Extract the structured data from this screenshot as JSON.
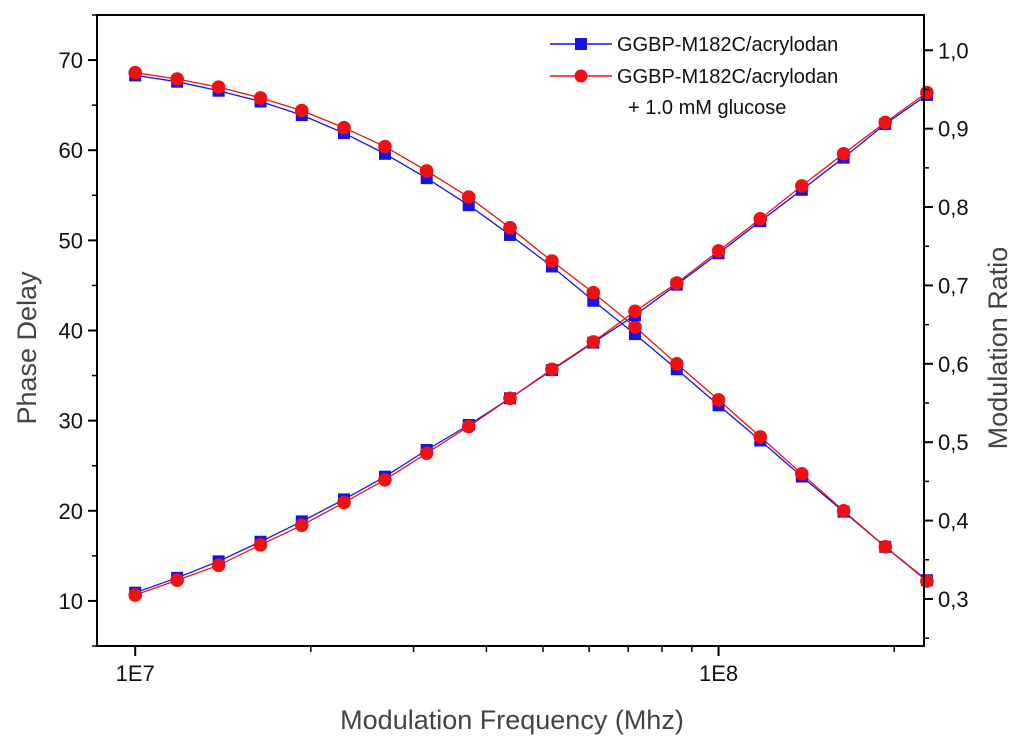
{
  "chart_data": {
    "type": "line",
    "title": "",
    "xlabel": "Modulation Frequency (Mhz)",
    "ylabel": "Phase Delay",
    "y2label": "Modulation Ratio",
    "xscale": "log",
    "xlim": [
      8600000,
      225000000
    ],
    "ylim": [
      5,
      75
    ],
    "y2lim": [
      0.24,
      1.045
    ],
    "x_ticks": [
      {
        "value": 10000000,
        "label": "1E7"
      },
      {
        "value": 100000000,
        "label": "1E8"
      }
    ],
    "y_ticks": [
      {
        "value": 10,
        "label": "10"
      },
      {
        "value": 20,
        "label": "20"
      },
      {
        "value": 30,
        "label": "30"
      },
      {
        "value": 40,
        "label": "40"
      },
      {
        "value": 50,
        "label": "50"
      },
      {
        "value": 60,
        "label": "60"
      },
      {
        "value": 70,
        "label": "70"
      }
    ],
    "y2_ticks": [
      {
        "value": 0.3,
        "label": "0,3"
      },
      {
        "value": 0.4,
        "label": "0,4"
      },
      {
        "value": 0.5,
        "label": "0,5"
      },
      {
        "value": 0.6,
        "label": "0,6"
      },
      {
        "value": 0.7,
        "label": "0,7"
      },
      {
        "value": 0.8,
        "label": "0,8"
      },
      {
        "value": 0.9,
        "label": "0,9"
      },
      {
        "value": 1.0,
        "label": "1,0"
      }
    ],
    "x": [
      10000000,
      11800000,
      13900000,
      16400000,
      19300000,
      22800000,
      26800000,
      31600000,
      37300000,
      43900000,
      51800000,
      61000000,
      71900000,
      84800000,
      100000000,
      117900000,
      138900000,
      163800000,
      193100000,
      227600000
    ],
    "series": [
      {
        "name": "GGBP-M182C/acrylodan",
        "axis": "left",
        "color": "#1414e6",
        "marker": "square",
        "values": [
          68.3,
          67.6,
          66.6,
          65.4,
          63.9,
          61.9,
          59.6,
          56.9,
          53.9,
          50.6,
          47.1,
          43.3,
          39.6,
          35.7,
          31.7,
          27.8,
          23.8,
          19.9,
          16.0,
          12.3
        ]
      },
      {
        "name": "GGBP-M182C/acrylodan",
        "axis": "left",
        "color": "#ee1111",
        "marker": "circle",
        "values": [
          68.6,
          67.9,
          67.0,
          65.8,
          64.4,
          62.5,
          60.4,
          57.7,
          54.8,
          51.4,
          47.7,
          44.2,
          40.4,
          36.3,
          32.3,
          28.2,
          24.1,
          20.0,
          16.0,
          12.2
        ]
      },
      {
        "name": "GGBP-M182C/acrylodan",
        "axis": "right",
        "color": "#1414e6",
        "marker": "square",
        "values": [
          0.308,
          0.327,
          0.348,
          0.373,
          0.399,
          0.427,
          0.456,
          0.49,
          0.522,
          0.556,
          0.592,
          0.627,
          0.662,
          0.701,
          0.741,
          0.782,
          0.822,
          0.863,
          0.906,
          0.943
        ]
      },
      {
        "name": "GGBP-M182C/acrylodan",
        "axis": "right",
        "color": "#ee1111",
        "marker": "circle",
        "values": [
          0.305,
          0.324,
          0.343,
          0.369,
          0.394,
          0.423,
          0.452,
          0.486,
          0.52,
          0.556,
          0.593,
          0.628,
          0.667,
          0.703,
          0.744,
          0.785,
          0.827,
          0.868,
          0.908,
          0.946
        ]
      }
    ],
    "legend": {
      "position": "top-right",
      "entries": [
        {
          "label": "GGBP-M182C/acrylodan",
          "color": "#1414e6",
          "marker": "square"
        },
        {
          "label": "GGBP-M182C/acrylodan",
          "label_line2": "+ 1.0 mM glucose",
          "color": "#ee1111",
          "marker": "circle"
        }
      ]
    }
  }
}
